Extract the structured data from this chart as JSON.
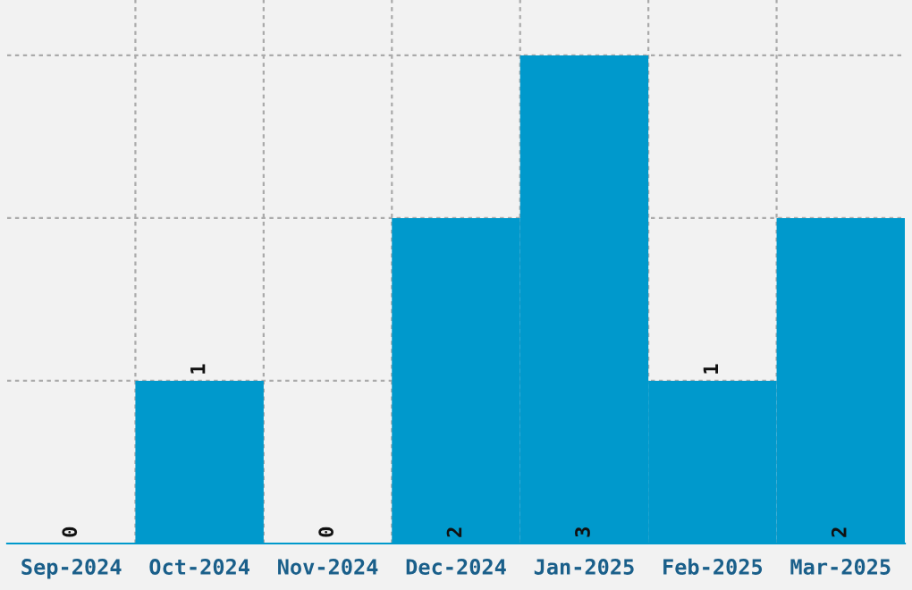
{
  "chart_data": {
    "type": "bar",
    "categories": [
      "Sep-2024",
      "Oct-2024",
      "Nov-2024",
      "Dec-2024",
      "Jan-2025",
      "Feb-2025",
      "Mar-2025"
    ],
    "values": [
      0,
      1,
      0,
      2,
      3,
      1,
      2
    ],
    "color": "#0099cc",
    "ylim": [
      0,
      3.34
    ],
    "yticks": [
      {
        "value": 1,
        "label": null
      },
      {
        "value": 2,
        "label": null
      },
      {
        "value": 3,
        "label": null
      }
    ],
    "tick_labels": "x",
    "grid": true,
    "data_labels": true
  }
}
